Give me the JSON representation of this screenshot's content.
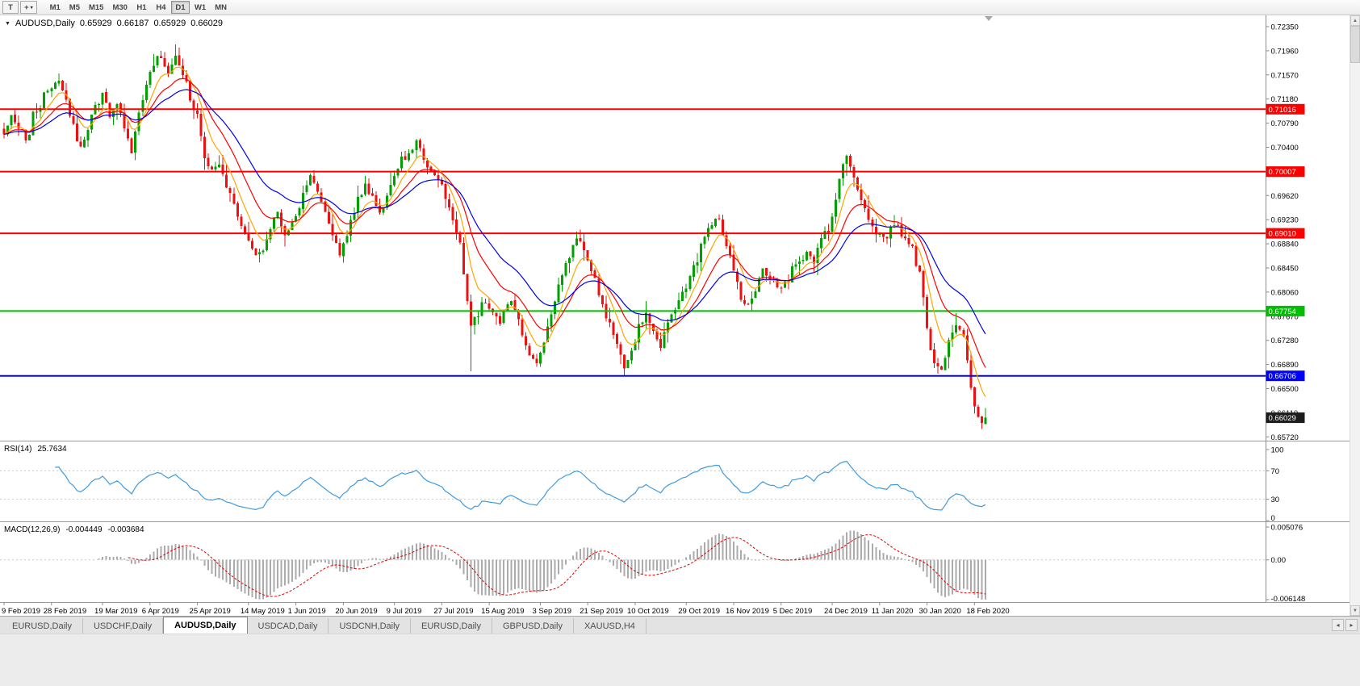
{
  "toolbar": {
    "tool_button": "T",
    "draw_tool_glyph": "+",
    "caret": "▾",
    "timeframes": [
      "M1",
      "M5",
      "M15",
      "M30",
      "H1",
      "H4",
      "D1",
      "W1",
      "MN"
    ],
    "active": "D1"
  },
  "icons": {
    "chart_menu": "▼",
    "arrow_up": "▲",
    "arrow_down": "▼",
    "tab_left": "◂",
    "tab_right": "▸"
  },
  "chart": {
    "title": "AUDUSD,Daily",
    "ohlc": {
      "open": "0.65929",
      "high": "0.66187",
      "low": "0.65929",
      "close": "0.66029"
    }
  },
  "chart_data": {
    "type": "candlestick",
    "symbol": "AUDUSD",
    "timeframe": "Daily",
    "bars": 270,
    "candle_colors": {
      "up": "#00A000",
      "down": "#EE1111"
    },
    "price_waypoints": [
      [
        0,
        0.706
      ],
      [
        2,
        0.7092
      ],
      [
        4,
        0.7072
      ],
      [
        6,
        0.7048
      ],
      [
        8,
        0.7088
      ],
      [
        10,
        0.7112
      ],
      [
        13,
        0.7138
      ],
      [
        15,
        0.7155
      ],
      [
        17,
        0.7118
      ],
      [
        19,
        0.7078
      ],
      [
        21,
        0.7035
      ],
      [
        23,
        0.7068
      ],
      [
        25,
        0.7108
      ],
      [
        27,
        0.7125
      ],
      [
        29,
        0.7092
      ],
      [
        31,
        0.7118
      ],
      [
        33,
        0.7072
      ],
      [
        35,
        0.704
      ],
      [
        37,
        0.7092
      ],
      [
        39,
        0.714
      ],
      [
        41,
        0.7175
      ],
      [
        43,
        0.719
      ],
      [
        45,
        0.7162
      ],
      [
        47,
        0.7195
      ],
      [
        49,
        0.7158
      ],
      [
        51,
        0.7118
      ],
      [
        53,
        0.7092
      ],
      [
        55,
        0.7028
      ],
      [
        57,
        0.6995
      ],
      [
        59,
        0.7015
      ],
      [
        61,
        0.6982
      ],
      [
        63,
        0.6948
      ],
      [
        65,
        0.6918
      ],
      [
        67,
        0.6888
      ],
      [
        69,
        0.6868
      ],
      [
        71,
        0.6882
      ],
      [
        73,
        0.6912
      ],
      [
        75,
        0.6932
      ],
      [
        77,
        0.6895
      ],
      [
        80,
        0.6928
      ],
      [
        82,
        0.6962
      ],
      [
        84,
        0.6992
      ],
      [
        86,
        0.6972
      ],
      [
        88,
        0.6938
      ],
      [
        90,
        0.6898
      ],
      [
        92,
        0.6872
      ],
      [
        95,
        0.6922
      ],
      [
        97,
        0.6958
      ],
      [
        99,
        0.6975
      ],
      [
        101,
        0.6958
      ],
      [
        103,
        0.6928
      ],
      [
        105,
        0.6962
      ],
      [
        107,
        0.6992
      ],
      [
        109,
        0.7015
      ],
      [
        111,
        0.7035
      ],
      [
        113,
        0.7045
      ],
      [
        115,
        0.7018
      ],
      [
        117,
        0.7
      ],
      [
        119,
        0.6985
      ],
      [
        121,
        0.6962
      ],
      [
        123,
        0.6925
      ],
      [
        125,
        0.6878
      ],
      [
        127,
        0.6792
      ],
      [
        128,
        0.6748
      ],
      [
        130,
        0.6772
      ],
      [
        132,
        0.6792
      ],
      [
        134,
        0.6775
      ],
      [
        136,
        0.6762
      ],
      [
        138,
        0.6788
      ],
      [
        140,
        0.6775
      ],
      [
        142,
        0.6738
      ],
      [
        144,
        0.6705
      ],
      [
        146,
        0.6695
      ],
      [
        148,
        0.6722
      ],
      [
        150,
        0.6772
      ],
      [
        152,
        0.6815
      ],
      [
        154,
        0.6852
      ],
      [
        156,
        0.6885
      ],
      [
        158,
        0.6888
      ],
      [
        160,
        0.6855
      ],
      [
        162,
        0.6822
      ],
      [
        164,
        0.6788
      ],
      [
        166,
        0.6758
      ],
      [
        168,
        0.6715
      ],
      [
        170,
        0.6682
      ],
      [
        172,
        0.6712
      ],
      [
        174,
        0.6752
      ],
      [
        176,
        0.6772
      ],
      [
        178,
        0.6742
      ],
      [
        180,
        0.6722
      ],
      [
        182,
        0.6752
      ],
      [
        184,
        0.6782
      ],
      [
        186,
        0.6805
      ],
      [
        188,
        0.6832
      ],
      [
        190,
        0.6862
      ],
      [
        192,
        0.6892
      ],
      [
        194,
        0.6915
      ],
      [
        196,
        0.6922
      ],
      [
        198,
        0.6888
      ],
      [
        200,
        0.6838
      ],
      [
        202,
        0.6795
      ],
      [
        204,
        0.6782
      ],
      [
        206,
        0.6818
      ],
      [
        208,
        0.6848
      ],
      [
        210,
        0.6832
      ],
      [
        212,
        0.6808
      ],
      [
        214,
        0.6815
      ],
      [
        216,
        0.6842
      ],
      [
        218,
        0.6862
      ],
      [
        220,
        0.6872
      ],
      [
        222,
        0.6862
      ],
      [
        224,
        0.6885
      ],
      [
        226,
        0.6912
      ],
      [
        228,
        0.6958
      ],
      [
        230,
        0.7015
      ],
      [
        231,
        0.7028
      ],
      [
        233,
        0.6992
      ],
      [
        235,
        0.6955
      ],
      [
        237,
        0.6925
      ],
      [
        239,
        0.6905
      ],
      [
        241,
        0.6898
      ],
      [
        243,
        0.6908
      ],
      [
        245,
        0.6912
      ],
      [
        247,
        0.6892
      ],
      [
        249,
        0.6872
      ],
      [
        251,
        0.6832
      ],
      [
        252,
        0.6788
      ],
      [
        253,
        0.6742
      ],
      [
        254,
        0.6712
      ],
      [
        255,
        0.6692
      ],
      [
        257,
        0.6688
      ],
      [
        259,
        0.6725
      ],
      [
        261,
        0.6752
      ],
      [
        263,
        0.6738
      ],
      [
        264,
        0.6698
      ],
      [
        265,
        0.6658
      ],
      [
        266,
        0.6628
      ],
      [
        267,
        0.6605
      ],
      [
        268,
        0.6592
      ],
      [
        269,
        0.66029
      ]
    ],
    "bar_overrides": {
      "269": {
        "o": 0.65929,
        "h": 0.66187,
        "l": 0.65929,
        "c": 0.66029
      }
    },
    "wick_overrides": [
      {
        "i": 47,
        "h": 0.7206
      },
      {
        "i": 128,
        "l": 0.6678
      },
      {
        "i": 170,
        "l": 0.6671
      },
      {
        "i": 255,
        "l": 0.6683
      },
      {
        "i": 256,
        "l": 0.6674
      },
      {
        "i": 268,
        "l": 0.6585
      }
    ],
    "moving_averages": [
      {
        "period": 7,
        "color": "#FFA500",
        "name": "ma-fast-orange"
      },
      {
        "period": 15,
        "color": "#FF0000",
        "name": "ma-mid-red"
      },
      {
        "period": 28,
        "color": "#0000E6",
        "name": "ma-slow-blue"
      }
    ],
    "h_lines": [
      {
        "price": 0.71016,
        "label": "0.71016",
        "color": "#FF0000"
      },
      {
        "price": 0.70007,
        "label": "0.70007",
        "color": "#FF0000"
      },
      {
        "price": 0.6901,
        "label": "0.69010",
        "color": "#FF0000"
      },
      {
        "price": 0.67754,
        "label": "0.67754",
        "color": "#00BE00"
      },
      {
        "price": 0.66706,
        "label": "0.66706",
        "color": "#0000FF"
      }
    ],
    "current_price": {
      "value": 0.66029,
      "label": "0.66029",
      "color": "#1C1C1C"
    },
    "y_axis": {
      "labels": [
        "0.72350",
        "0.71960",
        "0.71570",
        "0.71180",
        "0.70790",
        "0.70400",
        "0.70010",
        "0.69620",
        "0.69230",
        "0.68840",
        "0.68450",
        "0.68060",
        "0.67670",
        "0.67280",
        "0.66890",
        "0.66500",
        "0.66110",
        "0.65720"
      ]
    },
    "x_labels": [
      {
        "i": 0,
        "text": "9 Feb 2019"
      },
      {
        "i": 13,
        "text": "28 Feb 2019"
      },
      {
        "i": 27,
        "text": "19 Mar 2019"
      },
      {
        "i": 40,
        "text": "6 Apr 2019"
      },
      {
        "i": 53,
        "text": "25 Apr 2019"
      },
      {
        "i": 67,
        "text": "14 May 2019"
      },
      {
        "i": 80,
        "text": "1 Jun 2019"
      },
      {
        "i": 93,
        "text": "20 Jun 2019"
      },
      {
        "i": 107,
        "text": "9 Jul 2019"
      },
      {
        "i": 120,
        "text": "27 Jul 2019"
      },
      {
        "i": 133,
        "text": "15 Aug 2019"
      },
      {
        "i": 147,
        "text": "3 Sep 2019"
      },
      {
        "i": 160,
        "text": "21 Sep 2019"
      },
      {
        "i": 173,
        "text": "10 Oct 2019"
      },
      {
        "i": 187,
        "text": "29 Oct 2019"
      },
      {
        "i": 200,
        "text": "16 Nov 2019"
      },
      {
        "i": 213,
        "text": "5 Dec 2019"
      },
      {
        "i": 227,
        "text": "24 Dec 2019"
      },
      {
        "i": 240,
        "text": "11 Jan 2020"
      },
      {
        "i": 253,
        "text": "30 Jan 2020"
      },
      {
        "i": 266,
        "text": "18 Feb 2020"
      }
    ],
    "rsi": {
      "name": "RSI(14)",
      "value": "25.7634",
      "period": 14,
      "color": "#3E9BDD",
      "levels": [
        100,
        70,
        30,
        0
      ],
      "upper_level": 70,
      "lower_level": 30
    },
    "macd": {
      "name": "MACD(12,26,9)",
      "main_value": "-0.004449",
      "signal_value": "-0.003684",
      "fast": 12,
      "slow": 26,
      "signal": 9,
      "scale_max": 0.005076,
      "scale_min": -0.006148,
      "axis_labels": [
        "0.005076",
        "0.00",
        "-0.006148"
      ],
      "histogram_color": "#ABABAB",
      "signal_color": "#E00000"
    }
  },
  "tabs": {
    "items": [
      {
        "label": "EURUSD,Daily"
      },
      {
        "label": "USDCHF,Daily"
      },
      {
        "label": "AUDUSD,Daily"
      },
      {
        "label": "USDCAD,Daily"
      },
      {
        "label": "USDCNH,Daily"
      },
      {
        "label": "EURUSD,Daily"
      },
      {
        "label": "GBPUSD,Daily"
      },
      {
        "label": "XAUUSD,H4"
      }
    ],
    "active_index": 2
  }
}
